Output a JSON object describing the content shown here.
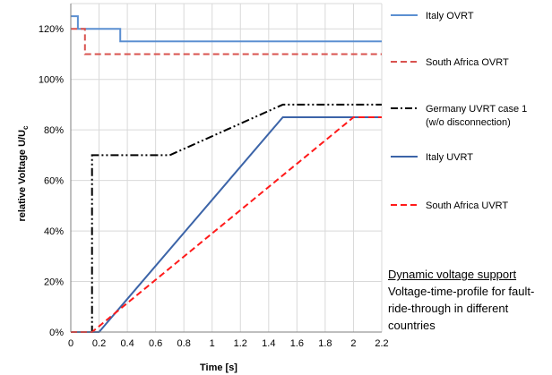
{
  "chart_data": {
    "type": "line",
    "xlabel": "Time [s]",
    "ylabel_main": "relative Voltage U/U",
    "ylabel_sub": "c",
    "xlim": [
      0,
      2.2
    ],
    "ylim": [
      0,
      130
    ],
    "x_ticks": [
      "0",
      "0.2",
      "0.4",
      "0.6",
      "0.8",
      "1",
      "1.2",
      "1.4",
      "1.6",
      "1.8",
      "2",
      "2.2"
    ],
    "y_ticks": [
      "0%",
      "20%",
      "40%",
      "60%",
      "80%",
      "100%",
      "120%"
    ],
    "grid": true,
    "legend_position": "right",
    "series": [
      {
        "name": "Italy OVRT",
        "color": "#5b8fd1",
        "dash": "solid",
        "points": [
          [
            0,
            125
          ],
          [
            0.05,
            125
          ],
          [
            0.05,
            120
          ],
          [
            0.35,
            120
          ],
          [
            0.35,
            115
          ],
          [
            2.2,
            115
          ]
        ]
      },
      {
        "name": "South Africa OVRT",
        "color": "#d9534f",
        "dash": "dash",
        "points": [
          [
            0,
            120
          ],
          [
            0.1,
            120
          ],
          [
            0.1,
            110
          ],
          [
            2.2,
            110
          ]
        ]
      },
      {
        "name": "Germany UVRT case 1",
        "name_line2": "(w/o disconnection)",
        "color": "#000000",
        "dash": "dashdotdot",
        "points": [
          [
            0,
            0
          ],
          [
            0.15,
            0
          ],
          [
            0.15,
            70
          ],
          [
            0.7,
            70
          ],
          [
            1.5,
            90
          ],
          [
            2.2,
            90
          ]
        ]
      },
      {
        "name": "Italy UVRT",
        "color": "#3c64a8",
        "dash": "solid",
        "points": [
          [
            0,
            0
          ],
          [
            0.2,
            0
          ],
          [
            1.5,
            85
          ],
          [
            2.2,
            85
          ]
        ]
      },
      {
        "name": "South Africa UVRT",
        "color": "#ff1a1a",
        "dash": "dash",
        "points": [
          [
            0,
            0
          ],
          [
            0.15,
            0
          ],
          [
            2.0,
            85
          ],
          [
            2.2,
            85
          ]
        ]
      }
    ]
  },
  "annotation": {
    "title": "Dynamic voltage support",
    "body": "Voltage-time-profile for fault-ride-through in different countries"
  }
}
